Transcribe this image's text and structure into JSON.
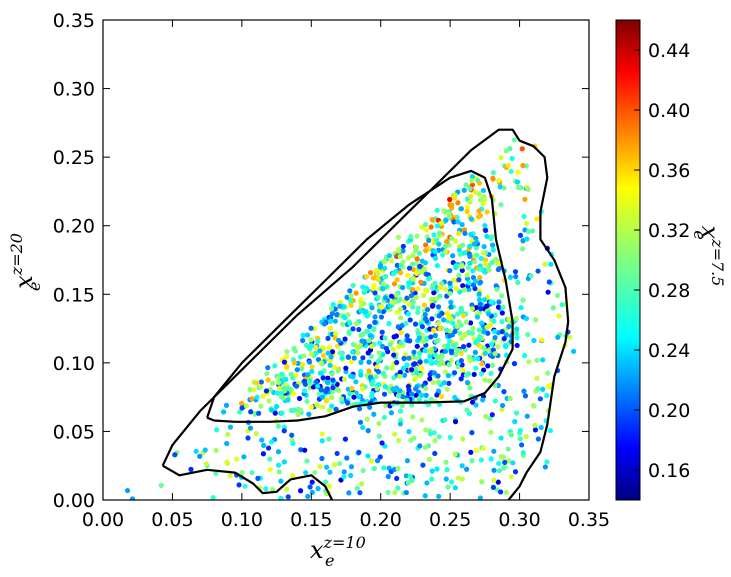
{
  "chart_data": {
    "type": "scatter",
    "xlabel": {
      "base": "x",
      "sub": "e",
      "sup": "z=10"
    },
    "ylabel": {
      "base": "x",
      "sub": "e",
      "sup": "z=20"
    },
    "colorbar_label": {
      "base": "x",
      "sub": "e",
      "sup": "z=7.5"
    },
    "xlim": [
      0.0,
      0.35
    ],
    "ylim": [
      0.0,
      0.35
    ],
    "x_ticks": [
      "0.00",
      "0.05",
      "0.10",
      "0.15",
      "0.20",
      "0.25",
      "0.30",
      "0.35"
    ],
    "y_ticks": [
      "0.00",
      "0.05",
      "0.10",
      "0.15",
      "0.20",
      "0.25",
      "0.30",
      "0.35"
    ],
    "colorbar": {
      "colormap": "jet",
      "range": [
        0.14,
        0.46
      ],
      "ticks": [
        "0.16",
        "0.20",
        "0.24",
        "0.28",
        "0.32",
        "0.36",
        "0.40",
        "0.44"
      ]
    },
    "grid": false,
    "contours": [
      {
        "level": "inner",
        "points": [
          [
            0.075,
            0.06
          ],
          [
            0.08,
            0.075
          ],
          [
            0.1,
            0.1
          ],
          [
            0.13,
            0.13
          ],
          [
            0.16,
            0.16
          ],
          [
            0.19,
            0.19
          ],
          [
            0.22,
            0.215
          ],
          [
            0.25,
            0.235
          ],
          [
            0.265,
            0.24
          ],
          [
            0.275,
            0.235
          ],
          [
            0.28,
            0.22
          ],
          [
            0.283,
            0.19
          ],
          [
            0.29,
            0.16
          ],
          [
            0.295,
            0.13
          ],
          [
            0.295,
            0.11
          ],
          [
            0.285,
            0.09
          ],
          [
            0.275,
            0.078
          ],
          [
            0.26,
            0.072
          ],
          [
            0.23,
            0.071
          ],
          [
            0.2,
            0.071
          ],
          [
            0.18,
            0.068
          ],
          [
            0.16,
            0.061
          ],
          [
            0.14,
            0.058
          ],
          [
            0.12,
            0.057
          ],
          [
            0.095,
            0.057
          ],
          [
            0.08,
            0.058
          ],
          [
            0.075,
            0.06
          ]
        ]
      },
      {
        "level": "outer",
        "points": [
          [
            0.043,
            0.025
          ],
          [
            0.05,
            0.04
          ],
          [
            0.07,
            0.065
          ],
          [
            0.1,
            0.095
          ],
          [
            0.14,
            0.135
          ],
          [
            0.18,
            0.17
          ],
          [
            0.21,
            0.2
          ],
          [
            0.24,
            0.23
          ],
          [
            0.265,
            0.255
          ],
          [
            0.285,
            0.27
          ],
          [
            0.295,
            0.27
          ],
          [
            0.3,
            0.262
          ],
          [
            0.31,
            0.258
          ],
          [
            0.318,
            0.25
          ],
          [
            0.32,
            0.235
          ],
          [
            0.315,
            0.21
          ],
          [
            0.315,
            0.19
          ],
          [
            0.325,
            0.175
          ],
          [
            0.333,
            0.155
          ],
          [
            0.335,
            0.13
          ],
          [
            0.333,
            0.115
          ],
          [
            0.325,
            0.09
          ],
          [
            0.32,
            0.055
          ],
          [
            0.315,
            0.035
          ],
          [
            0.305,
            0.02
          ],
          [
            0.3,
            0.01
          ],
          [
            0.292,
            0.0
          ]
        ]
      },
      {
        "level": "outer-left-tail",
        "points": [
          [
            0.043,
            0.025
          ],
          [
            0.055,
            0.018
          ],
          [
            0.075,
            0.022
          ],
          [
            0.095,
            0.02
          ],
          [
            0.108,
            0.012
          ],
          [
            0.115,
            0.005
          ],
          [
            0.125,
            0.006
          ],
          [
            0.135,
            0.015
          ],
          [
            0.15,
            0.018
          ],
          [
            0.16,
            0.01
          ],
          [
            0.165,
            0.0
          ]
        ]
      }
    ],
    "series": [
      {
        "marker": "circle",
        "regions": [
          {
            "polygon": [
              [
                0.08,
                0.06
              ],
              [
                0.27,
                0.24
              ],
              [
                0.3,
                0.12
              ],
              [
                0.25,
                0.07
              ]
            ],
            "count": 900,
            "color_range": [
              0.18,
              0.44
            ]
          },
          {
            "polygon": [
              [
                0.05,
                0.025
              ],
              [
                0.3,
                0.27
              ],
              [
                0.34,
                0.12
              ],
              [
                0.3,
                0.0
              ],
              [
                0.12,
                0.0
              ]
            ],
            "count": 600,
            "color_range": [
              0.2,
              0.42
            ]
          },
          {
            "polygon": [
              [
                0.0,
                0.0
              ],
              [
                0.05,
                0.04
              ],
              [
                0.32,
                0.3
              ],
              [
                0.345,
                0.12
              ],
              [
                0.32,
                0.0
              ]
            ],
            "count": 80,
            "color_range": [
              0.24,
              0.4
            ]
          }
        ]
      }
    ]
  }
}
